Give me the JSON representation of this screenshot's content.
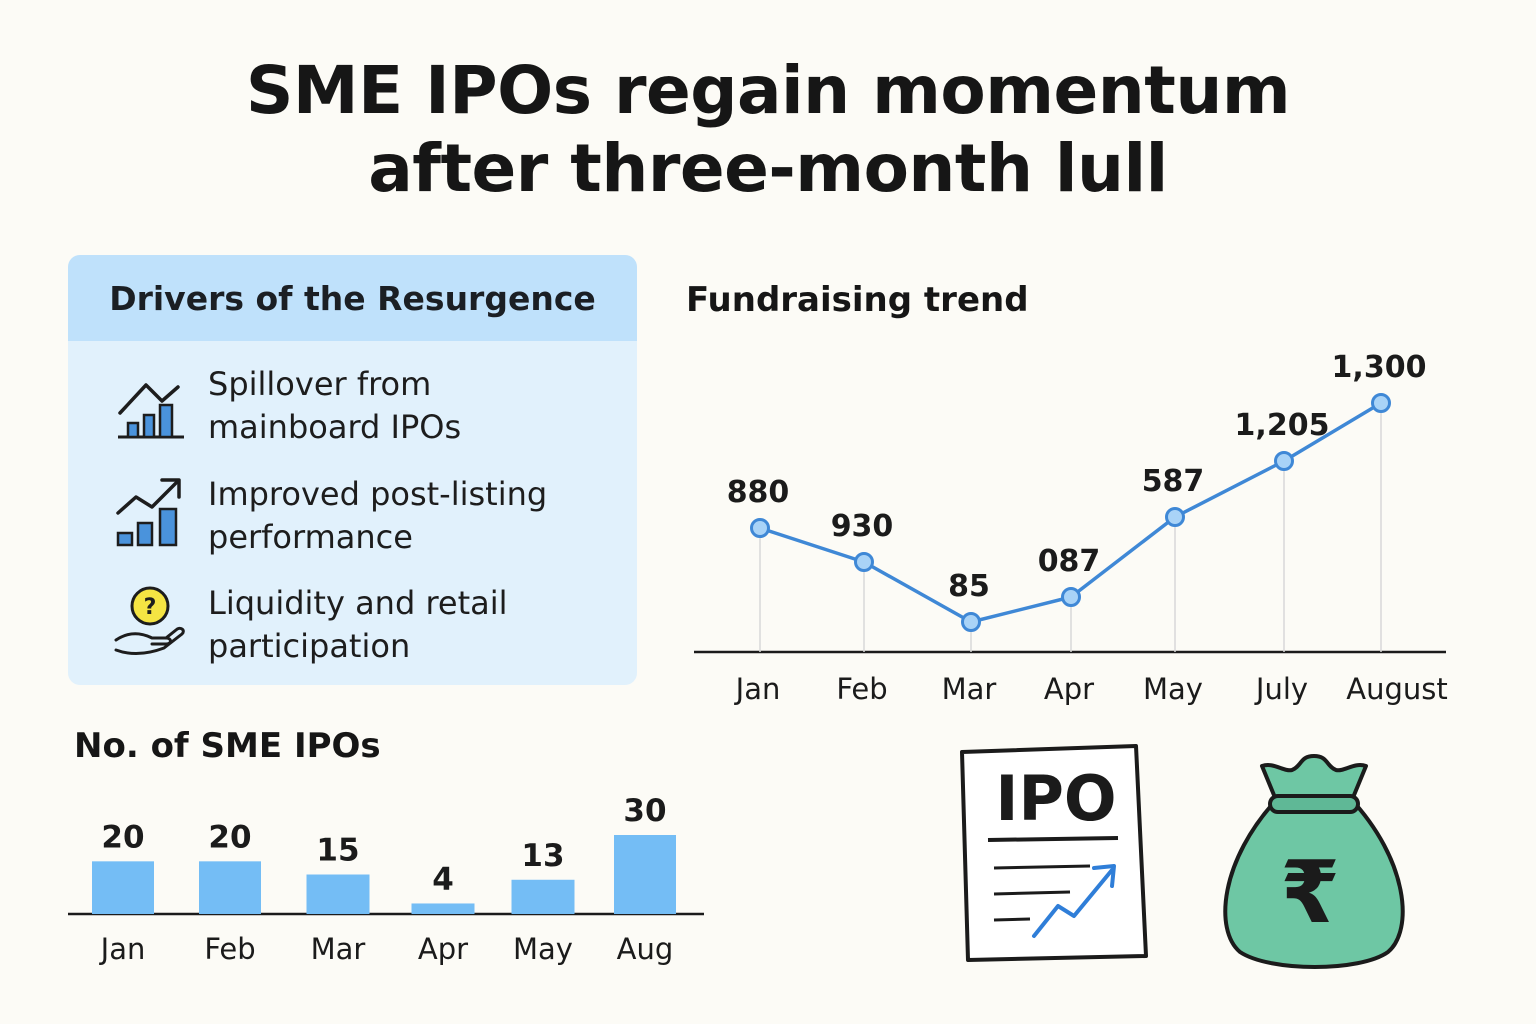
{
  "title": {
    "line1": "SME IPOs regain momentum",
    "line2": "after three-month lull"
  },
  "drivers": {
    "heading": "Drivers of the Resurgence",
    "items": [
      {
        "line1": "Spillover from",
        "line2": "mainboard IPOs",
        "icon": "bar-chart-peak-icon"
      },
      {
        "line1": "Improved post-listing",
        "line2": "performance",
        "icon": "bar-chart-growth-icon"
      },
      {
        "line1": "Liquidity and retail",
        "line2": "participation",
        "icon": "hand-coin-icon"
      }
    ]
  },
  "chart_data": [
    {
      "type": "line",
      "title": "Fundraising trend",
      "categories": [
        "Jan",
        "Feb",
        "Mar",
        "Apr",
        "May",
        "July",
        "August"
      ],
      "values": [
        880,
        930,
        85,
        87,
        587,
        1205,
        1300
      ],
      "labels": [
        "880",
        "930",
        "85",
        "087",
        "587",
        "1,205",
        "1,300"
      ],
      "grid": false,
      "color": "#3f88d6"
    },
    {
      "type": "bar",
      "title": "No. of SME IPOs",
      "categories": [
        "Jan",
        "Feb",
        "Mar",
        "Apr",
        "May",
        "Aug"
      ],
      "values": [
        20,
        20,
        15,
        4,
        13,
        30
      ],
      "ylim": [
        0,
        30
      ],
      "color": "#74bdf5"
    }
  ],
  "illustrations": {
    "ipo_document": {
      "text": "IPO",
      "icon": "ipo-document-icon"
    },
    "money_bag": {
      "symbol": "₹",
      "icon": "money-bag-icon",
      "color": "#6ec7a4"
    }
  }
}
